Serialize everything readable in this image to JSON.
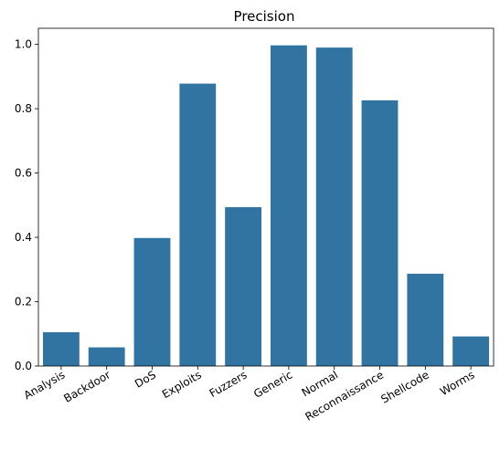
{
  "chart_data": {
    "type": "bar",
    "title": "Precision",
    "xlabel": "",
    "ylabel": "",
    "categories": [
      "Analysis",
      "Backdoor",
      "DoS",
      "Exploits",
      "Fuzzers",
      "Generic",
      "Normal",
      "Reconnaissance",
      "Shellcode",
      "Worms"
    ],
    "values": [
      0.105,
      0.058,
      0.398,
      0.878,
      0.494,
      0.997,
      0.99,
      0.826,
      0.287,
      0.092
    ],
    "ylim": [
      0,
      1.05
    ],
    "yticks": [
      "0.0",
      "0.2",
      "0.4",
      "0.6",
      "0.8",
      "1.0"
    ],
    "grid": false,
    "legend": "none",
    "bar_color": "#3274a1",
    "x_tick_rotation": -30
  }
}
